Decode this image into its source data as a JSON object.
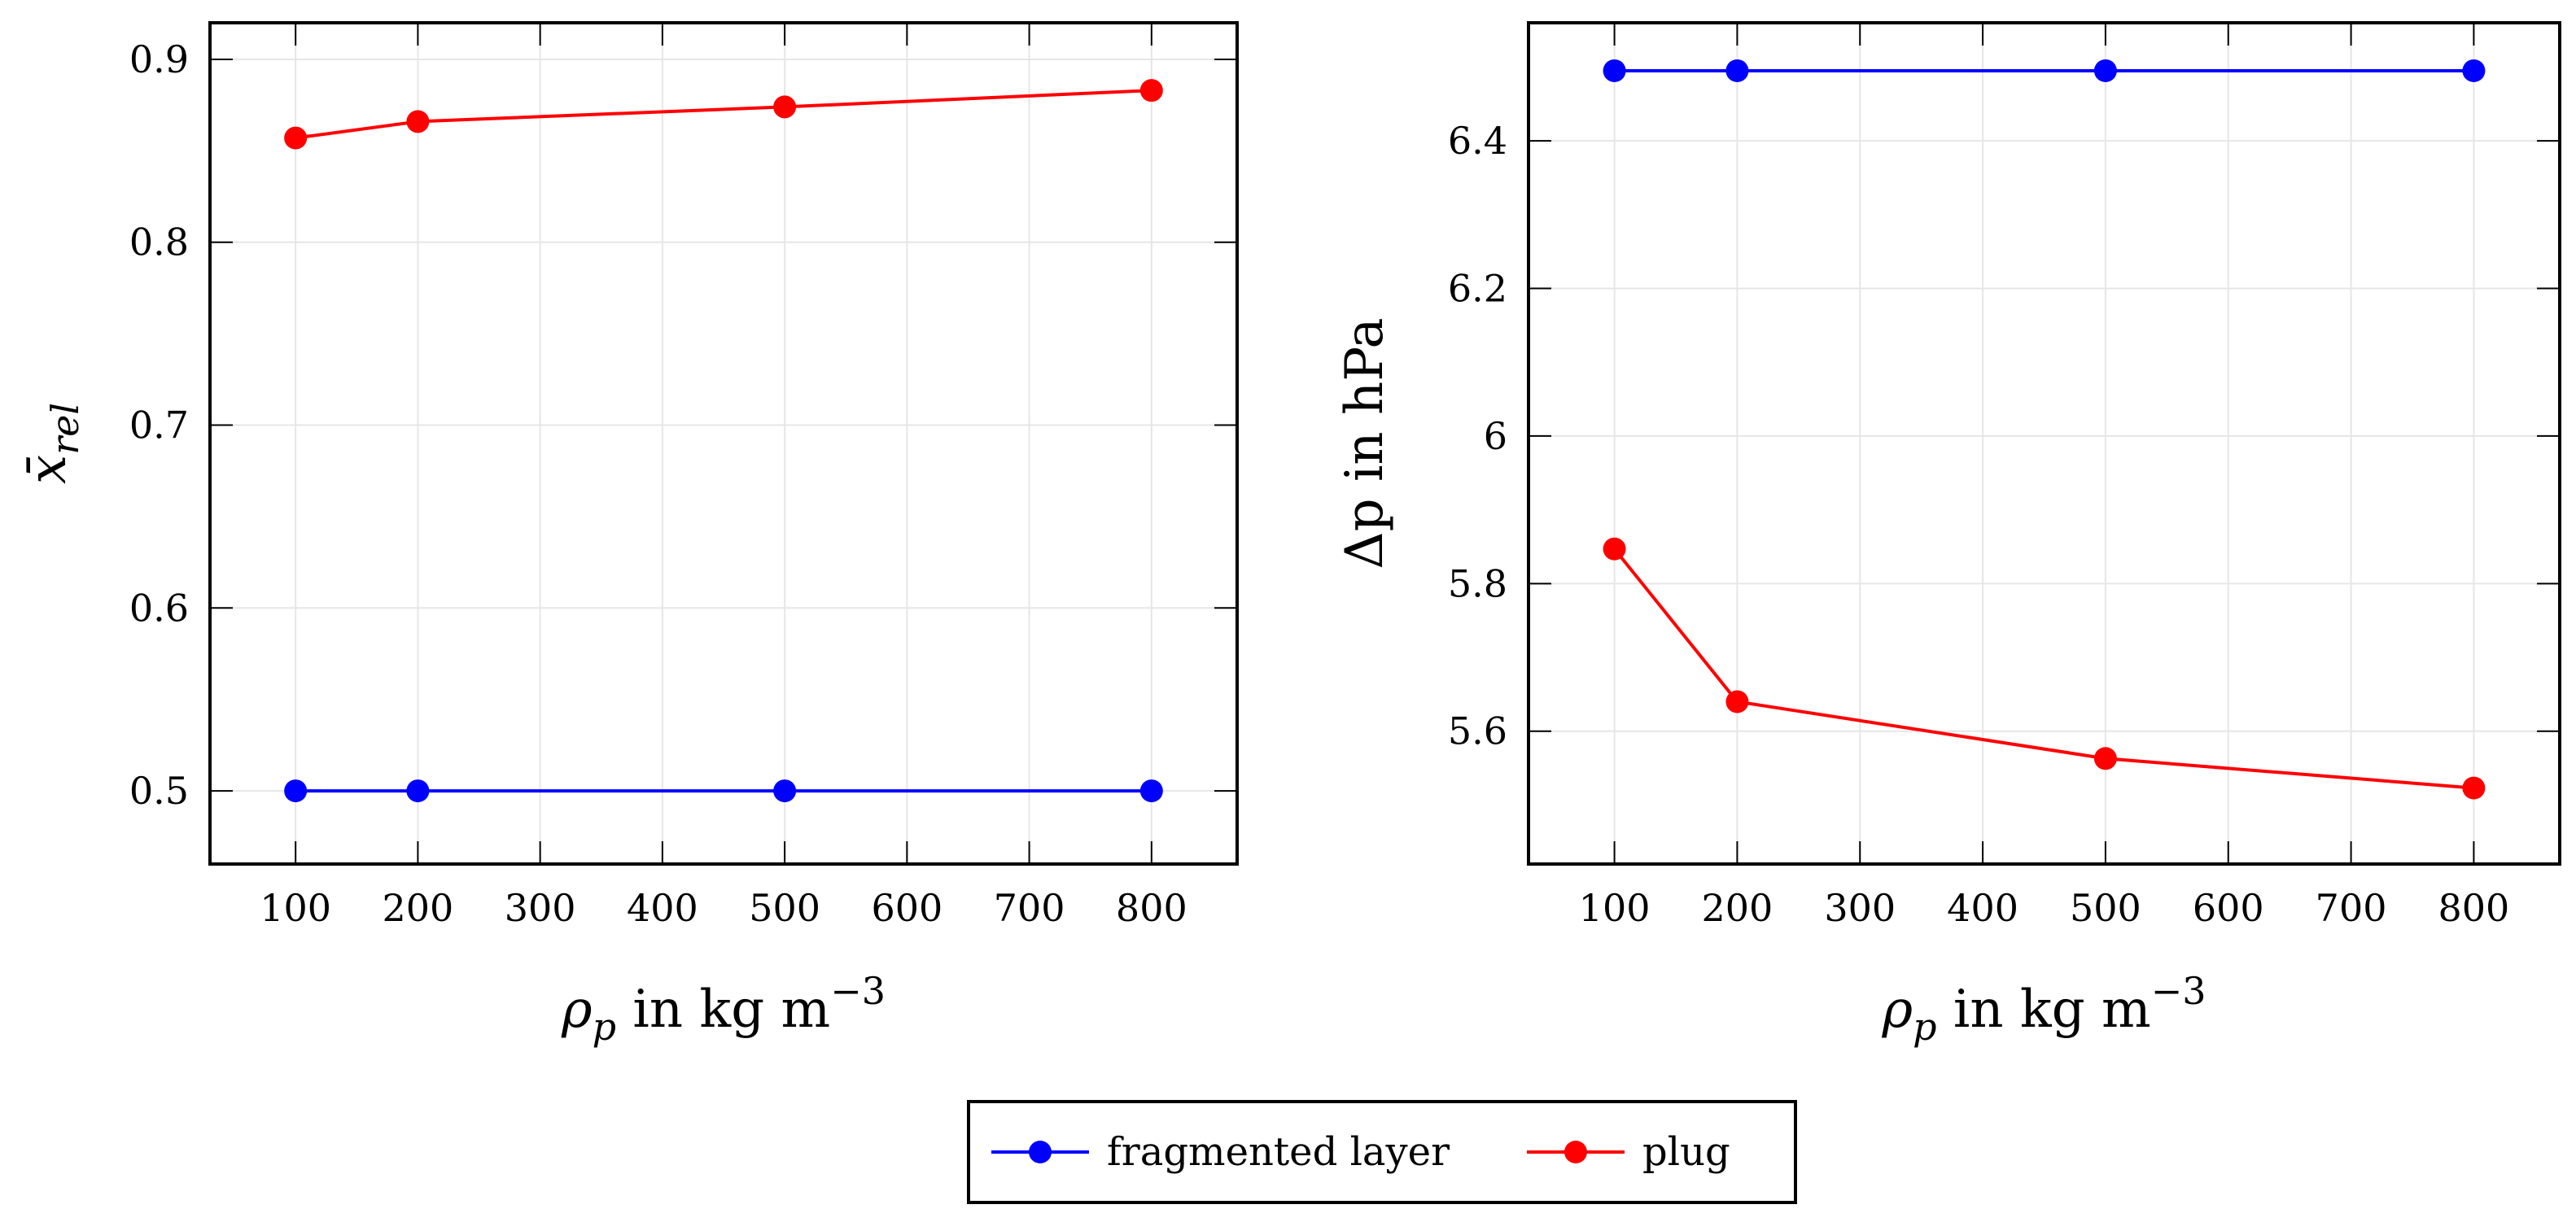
{
  "colors": {
    "fragmented": "#0000ff",
    "plug": "#ff0000"
  },
  "legend": {
    "entries": [
      {
        "label": "fragmented layer",
        "color": "#0000ff"
      },
      {
        "label": "plug",
        "color": "#ff0000"
      }
    ]
  },
  "chart_data": [
    {
      "type": "line",
      "title": "",
      "xlabel": "ρp in kg m−3",
      "xlabel_main": "ρ",
      "xlabel_sub": "p",
      "xlabel_unit": " in kg m",
      "xlabel_sup": "−3",
      "ylabel": "x̄rel",
      "ylabel_main": "x̄",
      "ylabel_sub": "rel",
      "xlim": [
        30,
        870
      ],
      "ylim": [
        0.46,
        0.92
      ],
      "xticks": [
        100,
        200,
        300,
        400,
        500,
        600,
        700,
        800
      ],
      "yticks": [
        0.5,
        0.6,
        0.7,
        0.8,
        0.9
      ],
      "ytick_labels": [
        "0.5",
        "0.6",
        "0.7",
        "0.8",
        "0.9"
      ],
      "grid": true,
      "series": [
        {
          "name": "fragmented layer",
          "color": "#0000ff",
          "x": [
            100,
            200,
            500,
            800
          ],
          "y": [
            0.5,
            0.5,
            0.5,
            0.5
          ]
        },
        {
          "name": "plug",
          "color": "#ff0000",
          "x": [
            100,
            200,
            500,
            800
          ],
          "y": [
            0.857,
            0.866,
            0.874,
            0.883
          ]
        }
      ]
    },
    {
      "type": "line",
      "title": "",
      "xlabel": "ρp in kg m−3",
      "xlabel_main": "ρ",
      "xlabel_sub": "p",
      "xlabel_unit": " in kg m",
      "xlabel_sup": "−3",
      "ylabel": "Δp in hPa",
      "ylabel_main": "Δp in hPa",
      "ylabel_sub": "",
      "xlim": [
        30,
        870
      ],
      "ylim": [
        5.42,
        6.56
      ],
      "xticks": [
        100,
        200,
        300,
        400,
        500,
        600,
        700,
        800
      ],
      "yticks": [
        5.6,
        5.8,
        6.0,
        6.2,
        6.4
      ],
      "ytick_labels": [
        "5.6",
        "5.8",
        "6",
        "6.2",
        "6.4"
      ],
      "grid": true,
      "series": [
        {
          "name": "fragmented layer",
          "color": "#0000ff",
          "x": [
            100,
            200,
            500,
            800
          ],
          "y": [
            6.495,
            6.495,
            6.495,
            6.495
          ]
        },
        {
          "name": "plug",
          "color": "#ff0000",
          "x": [
            100,
            200,
            500,
            800
          ],
          "y": [
            5.847,
            5.64,
            5.563,
            5.523
          ]
        }
      ]
    }
  ]
}
